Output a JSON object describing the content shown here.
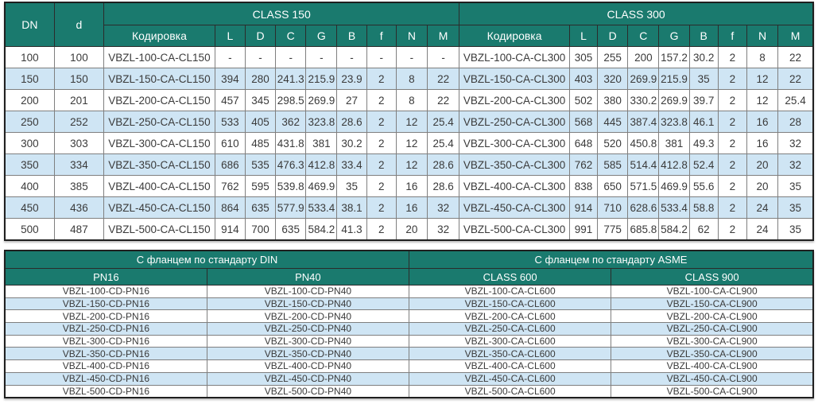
{
  "colors": {
    "header_bg": "#1a7a6e",
    "header_text": "#ffffff",
    "row_alt_bg": "#cfe5f4",
    "row_bg": "#ffffff",
    "grid_border": "#7f7f7f",
    "outer_border": "#1f1f1f",
    "cell_text": "#3a3a3a"
  },
  "dimension_table": {
    "dn_label": "DN",
    "d_label": "d",
    "class150_label": "CLASS 150",
    "class300_label": "CLASS 300",
    "sub_headers": [
      "Кодировка",
      "L",
      "D",
      "C",
      "G",
      "B",
      "f",
      "N",
      "M"
    ],
    "rows": [
      {
        "dn": "100",
        "d": "100",
        "class150": [
          "VBZL-100-CA-CL150",
          "-",
          "-",
          "-",
          "-",
          "-",
          "-",
          "-",
          "-"
        ],
        "class300": [
          "VBZL-100-CA-CL300",
          "305",
          "255",
          "200",
          "157.2",
          "30.2",
          "2",
          "8",
          "22"
        ]
      },
      {
        "dn": "150",
        "d": "150",
        "class150": [
          "VBZL-150-CA-CL150",
          "394",
          "280",
          "241.3",
          "215.9",
          "23.9",
          "2",
          "8",
          "22"
        ],
        "class300": [
          "VBZL-150-CA-CL300",
          "403",
          "320",
          "269.9",
          "215.9",
          "35",
          "2",
          "12",
          "22"
        ]
      },
      {
        "dn": "200",
        "d": "201",
        "class150": [
          "VBZL-200-CA-CL150",
          "457",
          "345",
          "298.5",
          "269.9",
          "27",
          "2",
          "8",
          "22"
        ],
        "class300": [
          "VBZL-200-CA-CL300",
          "502",
          "380",
          "330.2",
          "269.9",
          "39.7",
          "2",
          "12",
          "25.4"
        ]
      },
      {
        "dn": "250",
        "d": "252",
        "class150": [
          "VBZL-250-CA-CL150",
          "533",
          "405",
          "362",
          "323.8",
          "28.6",
          "2",
          "12",
          "25.4"
        ],
        "class300": [
          "VBZL-250-CA-CL300",
          "568",
          "445",
          "387.4",
          "323.8",
          "46.1",
          "2",
          "16",
          "28"
        ]
      },
      {
        "dn": "300",
        "d": "303",
        "class150": [
          "VBZL-300-CA-CL150",
          "610",
          "485",
          "431.8",
          "381",
          "30.2",
          "2",
          "12",
          "25.4"
        ],
        "class300": [
          "VBZL-300-CA-CL300",
          "648",
          "520",
          "450.8",
          "381",
          "49.3",
          "2",
          "16",
          "32"
        ]
      },
      {
        "dn": "350",
        "d": "334",
        "class150": [
          "VBZL-350-CA-CL150",
          "686",
          "535",
          "476.3",
          "412.8",
          "33.4",
          "2",
          "12",
          "28.6"
        ],
        "class300": [
          "VBZL-350-CA-CL300",
          "762",
          "585",
          "514.4",
          "412.8",
          "52.4",
          "2",
          "20",
          "32"
        ]
      },
      {
        "dn": "400",
        "d": "385",
        "class150": [
          "VBZL-400-CA-CL150",
          "762",
          "595",
          "539.8",
          "469.9",
          "35",
          "2",
          "16",
          "28.6"
        ],
        "class300": [
          "VBZL-400-CA-CL300",
          "838",
          "650",
          "571.5",
          "469.9",
          "55.6",
          "2",
          "20",
          "35"
        ]
      },
      {
        "dn": "450",
        "d": "436",
        "class150": [
          "VBZL-450-CA-CL150",
          "864",
          "635",
          "577.9",
          "533.4",
          "38.1",
          "2",
          "16",
          "32"
        ],
        "class300": [
          "VBZL-450-CA-CL300",
          "914",
          "710",
          "628.6",
          "533.4",
          "58.8",
          "2",
          "24",
          "35"
        ]
      },
      {
        "dn": "500",
        "d": "487",
        "class150": [
          "VBZL-500-CA-CL150",
          "914",
          "700",
          "635",
          "584.2",
          "41.3",
          "2",
          "20",
          "32"
        ],
        "class300": [
          "VBZL-500-CA-CL300",
          "991",
          "775",
          "685.8",
          "584.2",
          "62",
          "2",
          "24",
          "35"
        ]
      }
    ]
  },
  "flange_table": {
    "din_label": "С фланцем по стандарту DIN",
    "asme_label": "С фланцем по стандарту ASME",
    "sub_headers": [
      "PN16",
      "PN40",
      "CLASS 600",
      "CLASS 900"
    ],
    "rows": [
      [
        "VBZL-100-CD-PN16",
        "VBZL-100-CD-PN40",
        "VBZL-100-CA-CL600",
        "VBZL-100-CA-CL900"
      ],
      [
        "VBZL-150-CD-PN16",
        "VBZL-150-CD-PN40",
        "VBZL-150-CA-CL600",
        "VBZL-150-CA-CL900"
      ],
      [
        "VBZL-200-CD-PN16",
        "VBZL-200-CD-PN40",
        "VBZL-200-CA-CL600",
        "VBZL-200-CA-CL900"
      ],
      [
        "VBZL-250-CD-PN16",
        "VBZL-250-CD-PN40",
        "VBZL-250-CA-CL600",
        "VBZL-250-CA-CL900"
      ],
      [
        "VBZL-300-CD-PN16",
        "VBZL-300-CD-PN40",
        "VBZL-300-CA-CL600",
        "VBZL-300-CA-CL900"
      ],
      [
        "VBZL-350-CD-PN16",
        "VBZL-350-CD-PN40",
        "VBZL-350-CA-CL600",
        "VBZL-350-CA-CL900"
      ],
      [
        "VBZL-400-CD-PN16",
        "VBZL-400-CD-PN40",
        "VBZL-400-CA-CL600",
        "VBZL-400-CA-CL900"
      ],
      [
        "VBZL-450-CD-PN16",
        "VBZL-450-CD-PN40",
        "VBZL-450-CA-CL600",
        "VBZL-450-CA-CL900"
      ],
      [
        "VBZL-500-CD-PN16",
        "VBZL-500-CD-PN40",
        "VBZL-500-CA-CL600",
        "VBZL-500-CA-CL900"
      ]
    ]
  }
}
